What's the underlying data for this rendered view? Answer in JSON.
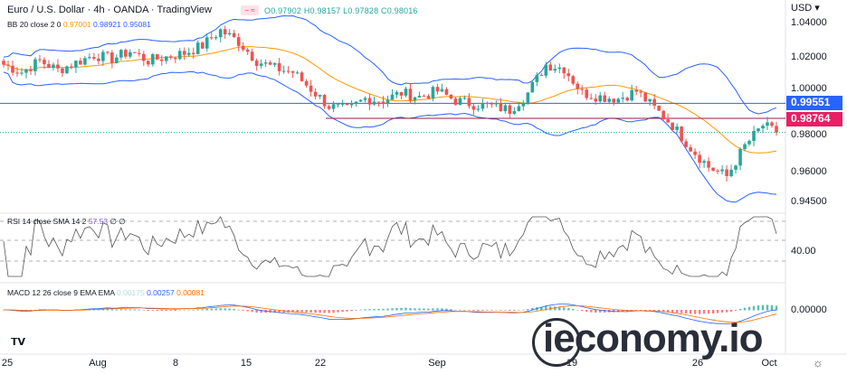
{
  "header": {
    "title": "Euro / U.S. Dollar · 4h · OANDA · TradingView",
    "ohlc": "O0.97902 H0.98157 L0.97828 C0.98016",
    "currency": "USD"
  },
  "bb": {
    "label": "BB 20 close 2 0",
    "basis": "0.97001",
    "upper": "0.98921",
    "lower": "0.95081"
  },
  "rsi": {
    "label": "RSI 14 close SMA 14 2",
    "value": "57.53",
    "extra": "∅ ∅",
    "axis": "40.00"
  },
  "macd": {
    "label": "MACD 12 26 close 9 EMA EMA",
    "hist": "0.00175",
    "macd": "0.00257",
    "signal": "0.00081",
    "axis": "0.00000"
  },
  "price_axis": [
    "1.04000",
    "1.02000",
    "1.00000",
    "0.98000",
    "0.96000",
    "0.94500"
  ],
  "tags": {
    "blue": "0.99551",
    "red": "0.98764"
  },
  "time_axis": [
    "25",
    "Aug",
    "8",
    "15",
    "22",
    "Sep",
    "19",
    "26",
    "Oct"
  ],
  "watermark": "ieconomy.io",
  "colors": {
    "up": "#26a69a",
    "down": "#ef5350",
    "bb_band": "#2962ff",
    "bb_basis": "#ff9800",
    "blue_tag": "#2962ff",
    "red_tag": "#e91e63"
  },
  "chart_data": {
    "type": "candlestick",
    "title": "Euro / U.S. Dollar 4h",
    "ylabel": "USD",
    "ylim": [
      0.94,
      1.04
    ],
    "x_ticks": [
      "25",
      "Aug",
      "8",
      "15",
      "22",
      "Sep",
      "19",
      "26",
      "Oct"
    ],
    "closes": [
      1.016,
      1.012,
      1.018,
      1.013,
      1.017,
      1.021,
      1.019,
      1.023,
      1.018,
      1.02,
      1.022,
      1.026,
      1.034,
      1.028,
      1.018,
      1.014,
      1.012,
      1.003,
      0.994,
      0.992,
      0.998,
      0.997,
      1.001,
      0.999,
      1.002,
      0.997,
      0.995,
      0.994,
      0.992,
      1.001,
      1.016,
      1.014,
      1.001,
      0.999,
      0.998,
      1.002,
      0.993,
      0.984,
      0.972,
      0.962,
      0.957,
      0.973,
      0.984,
      0.98
    ],
    "horizontal_lines": [
      {
        "price": 0.99551,
        "color": "blue"
      },
      {
        "price": 0.98764,
        "color": "red"
      }
    ],
    "last": 0.98016
  }
}
